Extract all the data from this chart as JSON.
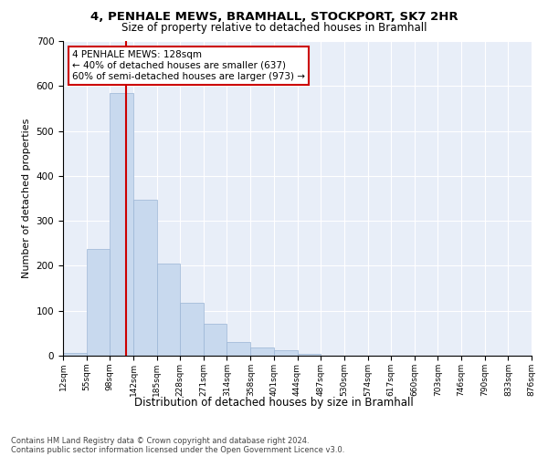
{
  "title_line1": "4, PENHALE MEWS, BRAMHALL, STOCKPORT, SK7 2HR",
  "title_line2": "Size of property relative to detached houses in Bramhall",
  "xlabel": "Distribution of detached houses by size in Bramhall",
  "ylabel": "Number of detached properties",
  "bar_color": "#c8d9ee",
  "bar_edge_color": "#9ab5d5",
  "background_color": "#e8eef8",
  "grid_color": "#ffffff",
  "annotation_box_color": "#cc0000",
  "vline_color": "#cc0000",
  "annotation_text_line1": "4 PENHALE MEWS: 128sqm",
  "annotation_text_line2": "← 40% of detached houses are smaller (637)",
  "annotation_text_line3": "60% of semi-detached houses are larger (973) →",
  "property_size": 128,
  "bin_edges": [
    12,
    55,
    98,
    142,
    185,
    228,
    271,
    314,
    358,
    401,
    444,
    487,
    530,
    574,
    617,
    660,
    703,
    746,
    790,
    833,
    876
  ],
  "bar_heights": [
    7,
    237,
    585,
    347,
    204,
    118,
    72,
    30,
    18,
    12,
    4,
    1,
    0,
    0,
    0,
    0,
    0,
    0,
    0,
    0
  ],
  "ylim": [
    0,
    700
  ],
  "yticks": [
    0,
    100,
    200,
    300,
    400,
    500,
    600,
    700
  ],
  "footnote_line1": "Contains HM Land Registry data © Crown copyright and database right 2024.",
  "footnote_line2": "Contains public sector information licensed under the Open Government Licence v3.0."
}
